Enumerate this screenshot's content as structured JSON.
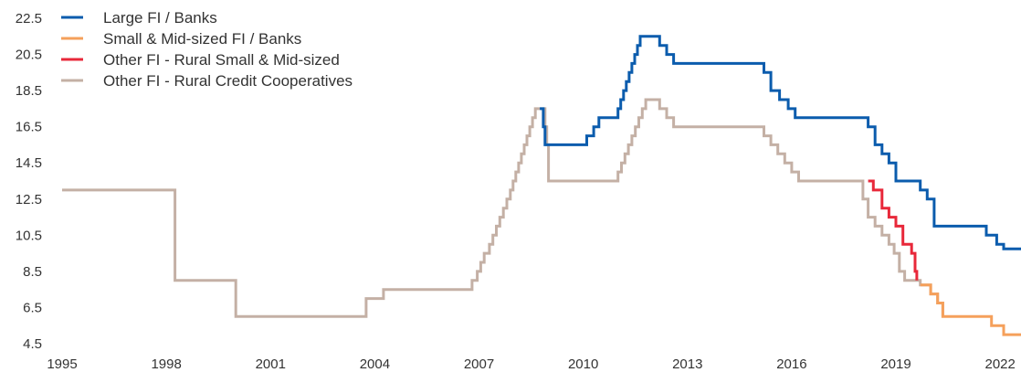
{
  "chart_data": {
    "type": "line",
    "title": "",
    "xlabel": "",
    "ylabel": "",
    "x_ticks": [
      "1995",
      "1998",
      "2001",
      "2004",
      "2007",
      "2010",
      "2013",
      "2016",
      "2019",
      "2022"
    ],
    "y_ticks": [
      "22.5",
      "20.5",
      "18.5",
      "16.5",
      "14.5",
      "12.5",
      "10.5",
      "8.5",
      "6.5",
      "4.5"
    ],
    "xlim": [
      1995,
      2022.6
    ],
    "ylim": [
      4.5,
      22.5
    ],
    "grid": false,
    "legend_position": "top-left",
    "series": [
      {
        "name": "Large FI / Banks",
        "color": "#0b5cad",
        "points": [
          [
            2008.75,
            17.5
          ],
          [
            2008.85,
            16.5
          ],
          [
            2008.9,
            15.5
          ],
          [
            2009.95,
            15.5
          ],
          [
            2010.1,
            16.0
          ],
          [
            2010.3,
            16.5
          ],
          [
            2010.45,
            17.0
          ],
          [
            2010.9,
            17.0
          ],
          [
            2011.0,
            17.5
          ],
          [
            2011.08,
            18.0
          ],
          [
            2011.16,
            18.5
          ],
          [
            2011.24,
            19.0
          ],
          [
            2011.32,
            19.5
          ],
          [
            2011.4,
            20.0
          ],
          [
            2011.48,
            20.5
          ],
          [
            2011.56,
            21.0
          ],
          [
            2011.64,
            21.5
          ],
          [
            2012.0,
            21.5
          ],
          [
            2012.2,
            21.0
          ],
          [
            2012.4,
            20.5
          ],
          [
            2012.6,
            20.0
          ],
          [
            2015.0,
            20.0
          ],
          [
            2015.2,
            19.5
          ],
          [
            2015.4,
            18.5
          ],
          [
            2015.65,
            18.0
          ],
          [
            2015.9,
            17.5
          ],
          [
            2016.1,
            17.0
          ],
          [
            2018.0,
            17.0
          ],
          [
            2018.2,
            16.5
          ],
          [
            2018.4,
            15.5
          ],
          [
            2018.6,
            15.0
          ],
          [
            2018.8,
            14.5
          ],
          [
            2019.0,
            13.5
          ],
          [
            2019.5,
            13.5
          ],
          [
            2019.7,
            13.0
          ],
          [
            2019.9,
            12.5
          ],
          [
            2020.1,
            11.0
          ],
          [
            2021.4,
            11.0
          ],
          [
            2021.6,
            10.5
          ],
          [
            2021.9,
            10.0
          ],
          [
            2022.1,
            9.75
          ],
          [
            2022.6,
            9.75
          ]
        ]
      },
      {
        "name": "Small & Mid-sized FI / Banks",
        "color": "#f5a05b",
        "points": [
          [
            2019.7,
            7.75
          ],
          [
            2020.0,
            7.25
          ],
          [
            2020.2,
            6.75
          ],
          [
            2020.35,
            6.0
          ],
          [
            2021.6,
            6.0
          ],
          [
            2021.75,
            5.5
          ],
          [
            2022.1,
            5.0
          ],
          [
            2022.6,
            5.0
          ]
        ]
      },
      {
        "name": "Other FI - Rural Small & Mid-sized",
        "color": "#e8283a",
        "points": [
          [
            2018.2,
            13.5
          ],
          [
            2018.35,
            13.0
          ],
          [
            2018.6,
            12.0
          ],
          [
            2018.8,
            11.5
          ],
          [
            2019.0,
            11.0
          ],
          [
            2019.2,
            10.0
          ],
          [
            2019.45,
            9.5
          ],
          [
            2019.55,
            8.5
          ],
          [
            2019.6,
            8.0
          ]
        ]
      },
      {
        "name": "Other FI - Rural Credit Cooperatives",
        "color": "#c4b0a5",
        "points": [
          [
            1995.0,
            13.0
          ],
          [
            1998.25,
            13.0
          ],
          [
            1998.25,
            8.0
          ],
          [
            2000.0,
            8.0
          ],
          [
            2000.0,
            6.0
          ],
          [
            2003.75,
            6.0
          ],
          [
            2003.75,
            7.0
          ],
          [
            2004.25,
            7.0
          ],
          [
            2004.25,
            7.5
          ],
          [
            2006.75,
            7.5
          ],
          [
            2006.8,
            8.0
          ],
          [
            2006.95,
            8.5
          ],
          [
            2007.05,
            9.0
          ],
          [
            2007.15,
            9.5
          ],
          [
            2007.3,
            10.0
          ],
          [
            2007.4,
            10.5
          ],
          [
            2007.5,
            11.0
          ],
          [
            2007.6,
            11.5
          ],
          [
            2007.7,
            12.0
          ],
          [
            2007.8,
            12.5
          ],
          [
            2007.9,
            13.0
          ],
          [
            2007.98,
            13.5
          ],
          [
            2008.06,
            14.0
          ],
          [
            2008.14,
            14.5
          ],
          [
            2008.22,
            15.0
          ],
          [
            2008.3,
            15.5
          ],
          [
            2008.38,
            16.0
          ],
          [
            2008.46,
            16.5
          ],
          [
            2008.54,
            17.0
          ],
          [
            2008.62,
            17.5
          ],
          [
            2008.78,
            17.5
          ],
          [
            2008.9,
            16.5
          ],
          [
            2008.95,
            15.5
          ],
          [
            2009.0,
            13.5
          ],
          [
            2010.9,
            13.5
          ],
          [
            2011.0,
            14.0
          ],
          [
            2011.1,
            14.5
          ],
          [
            2011.2,
            15.0
          ],
          [
            2011.3,
            15.5
          ],
          [
            2011.4,
            16.0
          ],
          [
            2011.5,
            16.5
          ],
          [
            2011.6,
            17.0
          ],
          [
            2011.7,
            17.5
          ],
          [
            2011.8,
            18.0
          ],
          [
            2012.05,
            18.0
          ],
          [
            2012.2,
            17.5
          ],
          [
            2012.4,
            17.0
          ],
          [
            2012.6,
            16.5
          ],
          [
            2015.0,
            16.5
          ],
          [
            2015.2,
            16.0
          ],
          [
            2015.4,
            15.5
          ],
          [
            2015.6,
            15.0
          ],
          [
            2015.8,
            14.5
          ],
          [
            2016.0,
            14.0
          ],
          [
            2016.2,
            13.5
          ],
          [
            2018.0,
            13.5
          ],
          [
            2018.05,
            12.5
          ],
          [
            2018.2,
            11.5
          ],
          [
            2018.4,
            11.0
          ],
          [
            2018.6,
            10.5
          ],
          [
            2018.8,
            10.0
          ],
          [
            2018.95,
            9.5
          ],
          [
            2019.1,
            8.5
          ],
          [
            2019.25,
            8.0
          ],
          [
            2019.7,
            8.0
          ],
          [
            2019.7,
            7.75
          ],
          [
            2020.0,
            7.25
          ],
          [
            2020.2,
            6.75
          ],
          [
            2020.35,
            6.0
          ]
        ]
      }
    ]
  }
}
